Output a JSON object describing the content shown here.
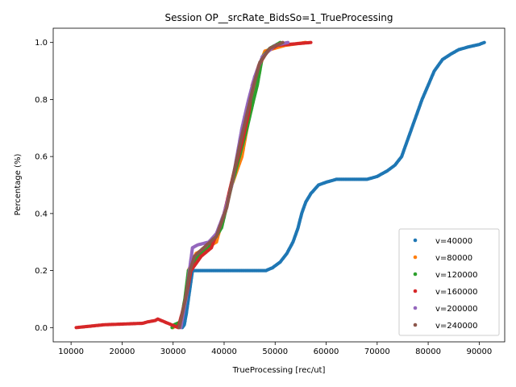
{
  "chart_data": {
    "type": "scatter",
    "title": "Session OP__srcRate_BidsSo=1_TrueProcessing",
    "xlabel": "TrueProcessing [rec/ut]",
    "ylabel": "Percentage (%)",
    "xlim": [
      6500,
      95000
    ],
    "ylim": [
      -0.05,
      1.05
    ],
    "x_ticks": [
      10000,
      20000,
      30000,
      40000,
      50000,
      60000,
      70000,
      80000,
      90000
    ],
    "y_ticks": [
      0.0,
      0.2,
      0.4,
      0.6,
      0.8,
      1.0
    ],
    "x_tick_labels": [
      "10000",
      "20000",
      "30000",
      "40000",
      "50000",
      "60000",
      "70000",
      "80000",
      "90000"
    ],
    "y_tick_labels": [
      "0.0",
      "0.2",
      "0.4",
      "0.6",
      "0.8",
      "1.0"
    ],
    "grid": false,
    "legend_position": "bottom-right",
    "series": [
      {
        "name": "v=40000",
        "color": "#1f77b4",
        "points": [
          [
            31800,
            0.0
          ],
          [
            32200,
            0.01
          ],
          [
            32600,
            0.05
          ],
          [
            33000,
            0.1
          ],
          [
            33400,
            0.15
          ],
          [
            33800,
            0.2
          ],
          [
            48200,
            0.2
          ],
          [
            49500,
            0.21
          ],
          [
            51000,
            0.23
          ],
          [
            52300,
            0.26
          ],
          [
            53500,
            0.3
          ],
          [
            54500,
            0.35
          ],
          [
            55200,
            0.4
          ],
          [
            56000,
            0.44
          ],
          [
            57000,
            0.47
          ],
          [
            58500,
            0.5
          ],
          [
            60000,
            0.51
          ],
          [
            62000,
            0.52
          ],
          [
            68000,
            0.52
          ],
          [
            70000,
            0.53
          ],
          [
            72000,
            0.55
          ],
          [
            73500,
            0.57
          ],
          [
            74800,
            0.6
          ],
          [
            75800,
            0.65
          ],
          [
            76800,
            0.7
          ],
          [
            77800,
            0.75
          ],
          [
            78800,
            0.8
          ],
          [
            80000,
            0.85
          ],
          [
            81200,
            0.9
          ],
          [
            82800,
            0.94
          ],
          [
            84500,
            0.96
          ],
          [
            86000,
            0.975
          ],
          [
            88000,
            0.985
          ],
          [
            90000,
            0.993
          ],
          [
            91000,
            1.0
          ]
        ]
      },
      {
        "name": "v=80000",
        "color": "#ff7f0e",
        "points": [
          [
            30000,
            0.0
          ],
          [
            31500,
            0.02
          ],
          [
            32500,
            0.1
          ],
          [
            33000,
            0.2
          ],
          [
            34500,
            0.26
          ],
          [
            36500,
            0.28
          ],
          [
            38500,
            0.3
          ],
          [
            40000,
            0.4
          ],
          [
            41500,
            0.5
          ],
          [
            42500,
            0.55
          ],
          [
            43500,
            0.6
          ],
          [
            44500,
            0.7
          ],
          [
            45300,
            0.8
          ],
          [
            46500,
            0.9
          ],
          [
            48000,
            0.97
          ],
          [
            52000,
            0.99
          ],
          [
            56000,
            1.0
          ]
        ]
      },
      {
        "name": "v=120000",
        "color": "#2ca02c",
        "points": [
          [
            29800,
            0.0
          ],
          [
            30200,
            0.01
          ],
          [
            31500,
            0.02
          ],
          [
            32300,
            0.1
          ],
          [
            33000,
            0.2
          ],
          [
            35000,
            0.25
          ],
          [
            37000,
            0.28
          ],
          [
            39500,
            0.35
          ],
          [
            41500,
            0.5
          ],
          [
            43000,
            0.6
          ],
          [
            44500,
            0.7
          ],
          [
            45800,
            0.8
          ],
          [
            46500,
            0.85
          ],
          [
            47500,
            0.95
          ],
          [
            49000,
            0.98
          ],
          [
            51000,
            1.0
          ]
        ]
      },
      {
        "name": "v=160000",
        "color": "#d62728",
        "points": [
          [
            11000,
            0.0
          ],
          [
            16500,
            0.01
          ],
          [
            24000,
            0.015
          ],
          [
            25000,
            0.02
          ],
          [
            26500,
            0.025
          ],
          [
            27000,
            0.03
          ],
          [
            31000,
            0.0
          ],
          [
            32500,
            0.1
          ],
          [
            33500,
            0.2
          ],
          [
            35500,
            0.25
          ],
          [
            37500,
            0.28
          ],
          [
            40000,
            0.4
          ],
          [
            42000,
            0.55
          ],
          [
            43500,
            0.65
          ],
          [
            44800,
            0.75
          ],
          [
            45500,
            0.85
          ],
          [
            46800,
            0.92
          ],
          [
            48500,
            0.97
          ],
          [
            50500,
            0.99
          ],
          [
            57000,
            1.0
          ]
        ]
      },
      {
        "name": "v=200000",
        "color": "#9467bd",
        "points": [
          [
            31500,
            0.0
          ],
          [
            32500,
            0.1
          ],
          [
            33200,
            0.2
          ],
          [
            33800,
            0.28
          ],
          [
            34800,
            0.29
          ],
          [
            37000,
            0.3
          ],
          [
            38500,
            0.33
          ],
          [
            40000,
            0.4
          ],
          [
            41500,
            0.5
          ],
          [
            42500,
            0.6
          ],
          [
            43500,
            0.7
          ],
          [
            44800,
            0.8
          ],
          [
            46000,
            0.88
          ],
          [
            47500,
            0.95
          ],
          [
            50000,
            0.99
          ],
          [
            52500,
            1.0
          ]
        ]
      },
      {
        "name": "v=240000",
        "color": "#8c564b",
        "points": [
          [
            31200,
            0.0
          ],
          [
            32400,
            0.1
          ],
          [
            33300,
            0.2
          ],
          [
            34200,
            0.25
          ],
          [
            36000,
            0.28
          ],
          [
            38500,
            0.32
          ],
          [
            40500,
            0.42
          ],
          [
            42000,
            0.55
          ],
          [
            43200,
            0.65
          ],
          [
            44500,
            0.75
          ],
          [
            45800,
            0.85
          ],
          [
            47000,
            0.93
          ],
          [
            49000,
            0.98
          ],
          [
            51500,
            1.0
          ]
        ]
      }
    ]
  }
}
